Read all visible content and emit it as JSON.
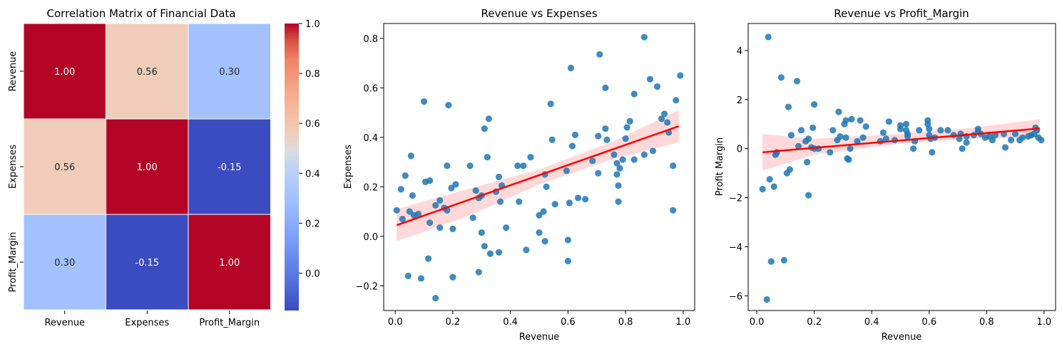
{
  "chart_data": [
    {
      "type": "heatmap",
      "title": "Correlation Matrix of Financial Data",
      "rows": [
        "Revenue",
        "Expenses",
        "Profit_Margin"
      ],
      "columns": [
        "Revenue",
        "Expenses",
        "Profit_Margin"
      ],
      "values": [
        [
          1.0,
          0.56,
          0.3
        ],
        [
          0.56,
          1.0,
          -0.15
        ],
        [
          0.3,
          -0.15,
          1.0
        ]
      ],
      "value_format": "0.00",
      "colormap": "coolwarm",
      "colorbar": {
        "min": -0.15,
        "max": 1.0,
        "ticks": [
          -0.0,
          0.2,
          0.4,
          0.6,
          0.8,
          1.0
        ],
        "tick_labels": [
          "0.0",
          "0.2",
          "0.4",
          "0.6",
          "0.8",
          "1.0"
        ],
        "display_ticks": [
          0.0,
          0.2,
          0.4,
          0.6,
          0.8,
          1.0
        ]
      }
    },
    {
      "type": "scatter",
      "title": "Revenue vs Expenses",
      "xlabel": "Revenue",
      "ylabel": "Expenses",
      "xlim": [
        -0.04,
        1.04
      ],
      "ylim": [
        -0.3,
        0.86
      ],
      "xticks": [
        0.0,
        0.2,
        0.4,
        0.6,
        0.8,
        1.0
      ],
      "xtick_labels": [
        "0.0",
        "0.2",
        "0.4",
        "0.6",
        "0.8",
        "1.0"
      ],
      "yticks": [
        -0.2,
        0.0,
        0.2,
        0.4,
        0.6,
        0.8
      ],
      "ytick_labels": [
        "−0.2",
        "0.0",
        "0.2",
        "0.4",
        "0.6",
        "0.8"
      ],
      "point_color": "#1f77b4",
      "fit_color": "#ff0000",
      "fit": {
        "x0": 0.005,
        "y0": 0.045,
        "x1": 0.985,
        "y1": 0.445
      },
      "ci": [
        [
          0.005,
          -0.02,
          0.11
        ],
        [
          0.25,
          0.08,
          0.19
        ],
        [
          0.5,
          0.21,
          0.27
        ],
        [
          0.75,
          0.31,
          0.38
        ],
        [
          0.985,
          0.38,
          0.51
        ]
      ],
      "points": [
        [
          0.005,
          0.105
        ],
        [
          0.02,
          0.19
        ],
        [
          0.025,
          0.07
        ],
        [
          0.035,
          0.245
        ],
        [
          0.045,
          -0.16
        ],
        [
          0.05,
          0.1
        ],
        [
          0.055,
          0.325
        ],
        [
          0.06,
          0.165
        ],
        [
          0.065,
          0.085
        ],
        [
          0.08,
          0.09
        ],
        [
          0.09,
          -0.17
        ],
        [
          0.1,
          0.545
        ],
        [
          0.105,
          0.22
        ],
        [
          0.115,
          -0.09
        ],
        [
          0.12,
          0.225
        ],
        [
          0.12,
          0.055
        ],
        [
          0.14,
          0.125
        ],
        [
          0.14,
          -0.25
        ],
        [
          0.155,
          0.145
        ],
        [
          0.155,
          0.035
        ],
        [
          0.17,
          0.115
        ],
        [
          0.18,
          0.285
        ],
        [
          0.18,
          0.105
        ],
        [
          0.185,
          0.53
        ],
        [
          0.195,
          0.195
        ],
        [
          0.2,
          -0.165
        ],
        [
          0.2,
          0.03
        ],
        [
          0.21,
          0.21
        ],
        [
          0.26,
          0.285
        ],
        [
          0.27,
          0.075
        ],
        [
          0.28,
          0.185
        ],
        [
          0.29,
          0.155
        ],
        [
          0.29,
          -0.145
        ],
        [
          0.3,
          0.165
        ],
        [
          0.3,
          0.015
        ],
        [
          0.31,
          0.435
        ],
        [
          0.31,
          -0.04
        ],
        [
          0.32,
          0.32
        ],
        [
          0.325,
          0.475
        ],
        [
          0.33,
          -0.07
        ],
        [
          0.35,
          0.18
        ],
        [
          0.36,
          0.24
        ],
        [
          0.36,
          -0.065
        ],
        [
          0.365,
          0.14
        ],
        [
          0.37,
          0.205
        ],
        [
          0.385,
          0.035
        ],
        [
          0.425,
          0.285
        ],
        [
          0.43,
          0.14
        ],
        [
          0.445,
          0.285
        ],
        [
          0.455,
          -0.055
        ],
        [
          0.47,
          0.32
        ],
        [
          0.5,
          0.085
        ],
        [
          0.5,
          0.015
        ],
        [
          0.515,
          0.1
        ],
        [
          0.52,
          0.25
        ],
        [
          0.52,
          -0.02
        ],
        [
          0.525,
          0.2
        ],
        [
          0.54,
          0.535
        ],
        [
          0.545,
          0.39
        ],
        [
          0.555,
          0.13
        ],
        [
          0.595,
          0.265
        ],
        [
          0.6,
          -0.015
        ],
        [
          0.6,
          -0.1
        ],
        [
          0.605,
          0.135
        ],
        [
          0.61,
          0.68
        ],
        [
          0.615,
          0.365
        ],
        [
          0.625,
          0.41
        ],
        [
          0.635,
          0.155
        ],
        [
          0.66,
          0.15
        ],
        [
          0.685,
          0.305
        ],
        [
          0.705,
          0.405
        ],
        [
          0.705,
          0.255
        ],
        [
          0.71,
          0.735
        ],
        [
          0.73,
          0.6
        ],
        [
          0.73,
          0.435
        ],
        [
          0.735,
          0.39
        ],
        [
          0.76,
          0.33
        ],
        [
          0.77,
          0.295
        ],
        [
          0.77,
          0.25
        ],
        [
          0.775,
          0.205
        ],
        [
          0.775,
          0.14
        ],
        [
          0.78,
          0.275
        ],
        [
          0.79,
          0.31
        ],
        [
          0.8,
          0.395
        ],
        [
          0.805,
          0.44
        ],
        [
          0.815,
          0.465
        ],
        [
          0.83,
          0.575
        ],
        [
          0.83,
          0.31
        ],
        [
          0.865,
          0.805
        ],
        [
          0.865,
          0.33
        ],
        [
          0.885,
          0.635
        ],
        [
          0.895,
          0.345
        ],
        [
          0.91,
          0.605
        ],
        [
          0.925,
          0.475
        ],
        [
          0.935,
          0.495
        ],
        [
          0.945,
          0.46
        ],
        [
          0.95,
          0.42
        ],
        [
          0.965,
          0.105
        ],
        [
          0.965,
          0.285
        ],
        [
          0.975,
          0.55
        ],
        [
          0.99,
          0.65
        ]
      ]
    },
    {
      "type": "scatter",
      "title": "Revenue vs Profit_Margin",
      "xlabel": "Revenue",
      "ylabel": "Profit Margin",
      "xlim": [
        -0.03,
        1.04
      ],
      "ylim": [
        -6.6,
        5.1
      ],
      "xticks": [
        0.0,
        0.2,
        0.4,
        0.6,
        0.8,
        1.0
      ],
      "xtick_labels": [
        "0.0",
        "0.2",
        "0.4",
        "0.6",
        "0.8",
        "1.0"
      ],
      "yticks": [
        -6,
        -4,
        -2,
        0,
        2,
        4
      ],
      "ytick_labels": [
        "−6",
        "−4",
        "−2",
        "0",
        "2",
        "4"
      ],
      "point_color": "#1f77b4",
      "fit_color": "#ff0000",
      "fit": {
        "x0": 0.02,
        "y0": -0.15,
        "x1": 0.985,
        "y1": 0.82
      },
      "ci": [
        [
          0.02,
          -0.9,
          0.6
        ],
        [
          0.2,
          -0.25,
          0.4
        ],
        [
          0.5,
          0.2,
          0.6
        ],
        [
          0.75,
          0.4,
          0.85
        ],
        [
          0.985,
          0.45,
          1.2
        ]
      ],
      "points": [
        [
          0.02,
          -1.65
        ],
        [
          0.035,
          -6.15
        ],
        [
          0.04,
          4.55
        ],
        [
          0.045,
          -1.25
        ],
        [
          0.05,
          -4.6
        ],
        [
          0.06,
          -1.55
        ],
        [
          0.065,
          -0.25
        ],
        [
          0.07,
          -0.15
        ],
        [
          0.085,
          2.9
        ],
        [
          0.095,
          -4.55
        ],
        [
          0.105,
          -1.0
        ],
        [
          0.11,
          1.7
        ],
        [
          0.115,
          -0.85
        ],
        [
          0.12,
          0.55
        ],
        [
          0.14,
          2.75
        ],
        [
          0.145,
          0.1
        ],
        [
          0.155,
          0.75
        ],
        [
          0.17,
          0.3
        ],
        [
          0.175,
          -0.55
        ],
        [
          0.18,
          0.4
        ],
        [
          0.18,
          -1.9
        ],
        [
          0.19,
          0.05
        ],
        [
          0.195,
          0.85
        ],
        [
          0.2,
          1.8
        ],
        [
          0.2,
          0.0
        ],
        [
          0.215,
          0.0
        ],
        [
          0.255,
          -0.15
        ],
        [
          0.265,
          0.75
        ],
        [
          0.28,
          0.35
        ],
        [
          0.285,
          1.5
        ],
        [
          0.29,
          0.5
        ],
        [
          0.305,
          1.0
        ],
        [
          0.31,
          1.15
        ],
        [
          0.31,
          0.45
        ],
        [
          0.315,
          -0.4
        ],
        [
          0.32,
          -0.45
        ],
        [
          0.325,
          0.0
        ],
        [
          0.33,
          1.2
        ],
        [
          0.35,
          0.3
        ],
        [
          0.36,
          1.15
        ],
        [
          0.37,
          0.45
        ],
        [
          0.38,
          0.9
        ],
        [
          0.43,
          0.3
        ],
        [
          0.44,
          0.65
        ],
        [
          0.45,
          0.4
        ],
        [
          0.46,
          1.1
        ],
        [
          0.48,
          0.35
        ],
        [
          0.5,
          0.95
        ],
        [
          0.5,
          0.8
        ],
        [
          0.52,
          1.0
        ],
        [
          0.52,
          0.75
        ],
        [
          0.525,
          0.6
        ],
        [
          0.525,
          0.5
        ],
        [
          0.545,
          0.0
        ],
        [
          0.55,
          0.3
        ],
        [
          0.565,
          0.75
        ],
        [
          0.595,
          1.15
        ],
        [
          0.595,
          1.0
        ],
        [
          0.6,
          0.8
        ],
        [
          0.6,
          0.55
        ],
        [
          0.605,
          0.4
        ],
        [
          0.61,
          -0.15
        ],
        [
          0.62,
          0.45
        ],
        [
          0.64,
          0.75
        ],
        [
          0.665,
          0.75
        ],
        [
          0.685,
          0.55
        ],
        [
          0.705,
          0.4
        ],
        [
          0.71,
          0.6
        ],
        [
          0.715,
          0.0
        ],
        [
          0.73,
          0.25
        ],
        [
          0.73,
          0.5
        ],
        [
          0.755,
          0.55
        ],
        [
          0.77,
          0.8
        ],
        [
          0.77,
          0.7
        ],
        [
          0.78,
          0.6
        ],
        [
          0.795,
          0.45
        ],
        [
          0.81,
          0.5
        ],
        [
          0.82,
          0.35
        ],
        [
          0.83,
          0.55
        ],
        [
          0.86,
          0.6
        ],
        [
          0.865,
          0.05
        ],
        [
          0.885,
          0.35
        ],
        [
          0.9,
          0.6
        ],
        [
          0.915,
          0.35
        ],
        [
          0.925,
          0.45
        ],
        [
          0.945,
          0.5
        ],
        [
          0.955,
          0.55
        ],
        [
          0.965,
          0.6
        ],
        [
          0.97,
          0.85
        ],
        [
          0.975,
          0.75
        ],
        [
          0.98,
          0.45
        ],
        [
          0.99,
          0.35
        ]
      ]
    }
  ]
}
